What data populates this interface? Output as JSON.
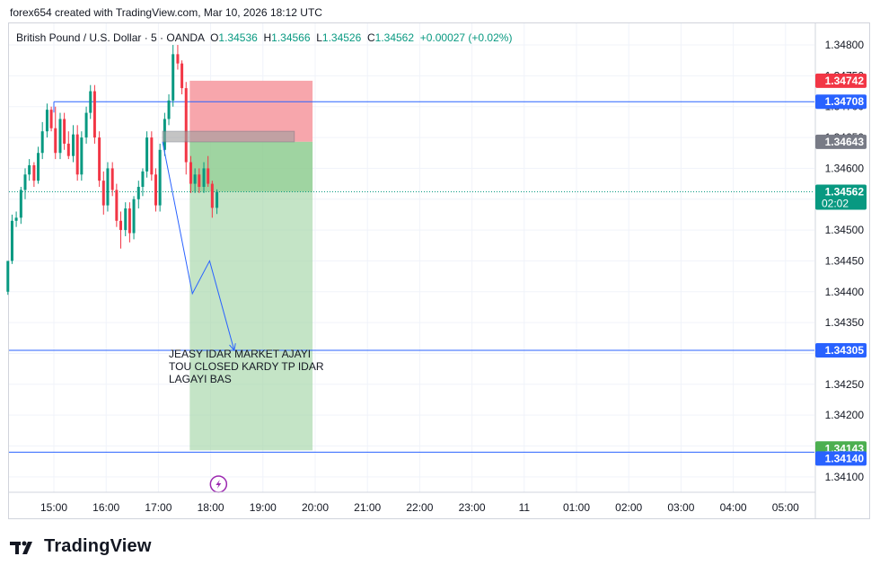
{
  "header": {
    "text": "forex654 created with TradingView.com, Mar 10, 2026 18:12 UTC"
  },
  "legend": {
    "symbol": "British Pound / U.S. Dollar · 5 · OANDA",
    "open_label": "O",
    "open": "1.34536",
    "high_label": "H",
    "high": "1.34566",
    "low_label": "L",
    "low": "1.34526",
    "close_label": "C",
    "close": "1.34562",
    "change": "+0.00027 (+0.02%)"
  },
  "brand": {
    "name": "TradingView"
  },
  "annotation": {
    "lines": [
      "JEASY IDAR MARKET AJAYI",
      "TOU CLOSED KARDY TP IDAR",
      "LAGAYI BAS"
    ]
  },
  "colors": {
    "up": "#089981",
    "down": "#f23645",
    "line": "#2962ff",
    "tp_fill": "#a5d6a7",
    "sl_fill": "#f7a1a8"
  },
  "chart_data": {
    "type": "candlestick",
    "title": "British Pound / U.S. Dollar · 5 · OANDA",
    "xlabel": "",
    "ylabel": "",
    "ylim": [
      1.34075,
      1.34835
    ],
    "y_ticks": [
      "1.34800",
      "1.34750",
      "1.34700",
      "1.34650",
      "1.34600",
      "1.34550",
      "1.34500",
      "1.34450",
      "1.34400",
      "1.34350",
      "1.34300",
      "1.34250",
      "1.34200",
      "1.34150",
      "1.34100"
    ],
    "x_ticks": [
      "15:00",
      "16:00",
      "17:00",
      "18:00",
      "19:00",
      "20:00",
      "21:00",
      "22:00",
      "23:00",
      "11",
      "01:00",
      "02:00",
      "03:00",
      "04:00",
      "05:00"
    ],
    "x_tick_hours": [
      15,
      16,
      17,
      18,
      19,
      20,
      21,
      22,
      23,
      24,
      25,
      26,
      27,
      28,
      29
    ],
    "xlim_hours": [
      14.2,
      29.6
    ],
    "candles": [
      {
        "t": 14.12,
        "o": 1.344,
        "h": 1.3445,
        "l": 1.34395,
        "c": 1.3445
      },
      {
        "t": 14.2,
        "o": 1.3445,
        "h": 1.34525,
        "l": 1.34445,
        "c": 1.34515
      },
      {
        "t": 14.28,
        "o": 1.34515,
        "h": 1.3453,
        "l": 1.34505,
        "c": 1.3452
      },
      {
        "t": 14.37,
        "o": 1.3452,
        "h": 1.3457,
        "l": 1.3451,
        "c": 1.34565
      },
      {
        "t": 14.45,
        "o": 1.34565,
        "h": 1.346,
        "l": 1.3455,
        "c": 1.3459
      },
      {
        "t": 14.53,
        "o": 1.3459,
        "h": 1.34615,
        "l": 1.3458,
        "c": 1.34605
      },
      {
        "t": 14.62,
        "o": 1.34605,
        "h": 1.3461,
        "l": 1.3457,
        "c": 1.3458
      },
      {
        "t": 14.7,
        "o": 1.3458,
        "h": 1.34635,
        "l": 1.34575,
        "c": 1.34625
      },
      {
        "t": 14.78,
        "o": 1.34625,
        "h": 1.34675,
        "l": 1.34615,
        "c": 1.3466
      },
      {
        "t": 14.87,
        "o": 1.3466,
        "h": 1.34705,
        "l": 1.3465,
        "c": 1.34695
      },
      {
        "t": 14.95,
        "o": 1.34695,
        "h": 1.347,
        "l": 1.3466,
        "c": 1.34665
      },
      {
        "t": 15.03,
        "o": 1.34665,
        "h": 1.347,
        "l": 1.34615,
        "c": 1.34625
      },
      {
        "t": 15.12,
        "o": 1.34625,
        "h": 1.3469,
        "l": 1.34615,
        "c": 1.3468
      },
      {
        "t": 15.2,
        "o": 1.3468,
        "h": 1.3469,
        "l": 1.3463,
        "c": 1.3464
      },
      {
        "t": 15.28,
        "o": 1.3464,
        "h": 1.3466,
        "l": 1.34615,
        "c": 1.3462
      },
      {
        "t": 15.37,
        "o": 1.3462,
        "h": 1.3467,
        "l": 1.3461,
        "c": 1.34655
      },
      {
        "t": 15.45,
        "o": 1.34655,
        "h": 1.3467,
        "l": 1.3458,
        "c": 1.3459
      },
      {
        "t": 15.53,
        "o": 1.3459,
        "h": 1.3466,
        "l": 1.3458,
        "c": 1.3465
      },
      {
        "t": 15.62,
        "o": 1.3465,
        "h": 1.347,
        "l": 1.3464,
        "c": 1.3469
      },
      {
        "t": 15.7,
        "o": 1.3469,
        "h": 1.34735,
        "l": 1.3468,
        "c": 1.34725
      },
      {
        "t": 15.78,
        "o": 1.34725,
        "h": 1.34735,
        "l": 1.3464,
        "c": 1.3465
      },
      {
        "t": 15.87,
        "o": 1.3465,
        "h": 1.3466,
        "l": 1.3457,
        "c": 1.3458
      },
      {
        "t": 15.95,
        "o": 1.3458,
        "h": 1.34595,
        "l": 1.34525,
        "c": 1.3454
      },
      {
        "t": 16.03,
        "o": 1.3454,
        "h": 1.3461,
        "l": 1.3453,
        "c": 1.346
      },
      {
        "t": 16.12,
        "o": 1.346,
        "h": 1.3461,
        "l": 1.34555,
        "c": 1.34565
      },
      {
        "t": 16.2,
        "o": 1.34565,
        "h": 1.34575,
        "l": 1.34505,
        "c": 1.34515
      },
      {
        "t": 16.28,
        "o": 1.34515,
        "h": 1.3453,
        "l": 1.3447,
        "c": 1.345
      },
      {
        "t": 16.37,
        "o": 1.345,
        "h": 1.34545,
        "l": 1.3449,
        "c": 1.34535
      },
      {
        "t": 16.45,
        "o": 1.34535,
        "h": 1.34545,
        "l": 1.3448,
        "c": 1.34495
      },
      {
        "t": 16.53,
        "o": 1.34495,
        "h": 1.34555,
        "l": 1.34485,
        "c": 1.3455
      },
      {
        "t": 16.62,
        "o": 1.3455,
        "h": 1.3458,
        "l": 1.34535,
        "c": 1.3457
      },
      {
        "t": 16.7,
        "o": 1.3457,
        "h": 1.346,
        "l": 1.34555,
        "c": 1.34595
      },
      {
        "t": 16.78,
        "o": 1.34595,
        "h": 1.3466,
        "l": 1.34585,
        "c": 1.3465
      },
      {
        "t": 16.87,
        "o": 1.3465,
        "h": 1.3466,
        "l": 1.3458,
        "c": 1.3459
      },
      {
        "t": 16.95,
        "o": 1.3459,
        "h": 1.346,
        "l": 1.3453,
        "c": 1.3454
      },
      {
        "t": 17.03,
        "o": 1.3454,
        "h": 1.3464,
        "l": 1.3453,
        "c": 1.3463
      },
      {
        "t": 17.12,
        "o": 1.3463,
        "h": 1.3469,
        "l": 1.3462,
        "c": 1.3468
      },
      {
        "t": 17.2,
        "o": 1.3468,
        "h": 1.3472,
        "l": 1.3467,
        "c": 1.3471
      },
      {
        "t": 17.28,
        "o": 1.3471,
        "h": 1.348,
        "l": 1.347,
        "c": 1.34785
      },
      {
        "t": 17.37,
        "o": 1.34785,
        "h": 1.348,
        "l": 1.3476,
        "c": 1.3477
      },
      {
        "t": 17.45,
        "o": 1.3477,
        "h": 1.34775,
        "l": 1.3472,
        "c": 1.3473
      },
      {
        "t": 17.53,
        "o": 1.3473,
        "h": 1.3474,
        "l": 1.3459,
        "c": 1.3461
      },
      {
        "t": 17.62,
        "o": 1.3461,
        "h": 1.3462,
        "l": 1.3456,
        "c": 1.34575
      },
      {
        "t": 17.7,
        "o": 1.34575,
        "h": 1.346,
        "l": 1.3456,
        "c": 1.3459
      },
      {
        "t": 17.78,
        "o": 1.3459,
        "h": 1.346,
        "l": 1.3456,
        "c": 1.3457
      },
      {
        "t": 17.87,
        "o": 1.3457,
        "h": 1.3461,
        "l": 1.3456,
        "c": 1.346
      },
      {
        "t": 17.95,
        "o": 1.346,
        "h": 1.3462,
        "l": 1.3457,
        "c": 1.34575
      },
      {
        "t": 18.03,
        "o": 1.34575,
        "h": 1.3458,
        "l": 1.3452,
        "c": 1.34536
      },
      {
        "t": 18.12,
        "o": 1.34536,
        "h": 1.34566,
        "l": 1.34526,
        "c": 1.34562
      }
    ],
    "levels": [
      {
        "name": "stop loss",
        "value": 1.34742,
        "label": "1.34742",
        "color": "#f23645"
      },
      {
        "name": "horizontal line",
        "value": 1.34708,
        "label": "1.34708",
        "color": "#2962ff"
      },
      {
        "name": "entry",
        "value": 1.34643,
        "label": "1.34643",
        "color": "#787b86"
      },
      {
        "name": "current price",
        "value": 1.34562,
        "label": "1.34562",
        "sub": "02:02",
        "color": "#089981"
      },
      {
        "name": "horizontal line",
        "value": 1.34305,
        "label": "1.34305",
        "color": "#2962ff"
      },
      {
        "name": "take profit",
        "value": 1.34143,
        "label": "1.34143",
        "color": "#4caf50"
      },
      {
        "name": "horizontal line",
        "value": 1.3414,
        "label": "1.34140",
        "color": "#2962ff"
      }
    ],
    "position": {
      "type": "short",
      "start_hour": 17.6,
      "end_hour": 19.95,
      "entry": 1.34643,
      "stop": 1.34742,
      "target": 1.34143
    },
    "rectangle": {
      "start_hour": 17.08,
      "end_hour": 19.6,
      "top": 1.3466,
      "bottom": 1.34643
    },
    "projection": [
      {
        "t": 17.08,
        "y": 1.34643
      },
      {
        "t": 17.65,
        "y": 1.34397
      },
      {
        "t": 17.98,
        "y": 1.3445
      },
      {
        "t": 18.45,
        "y": 1.34305
      }
    ],
    "h_line_start_hour": 15.0
  }
}
